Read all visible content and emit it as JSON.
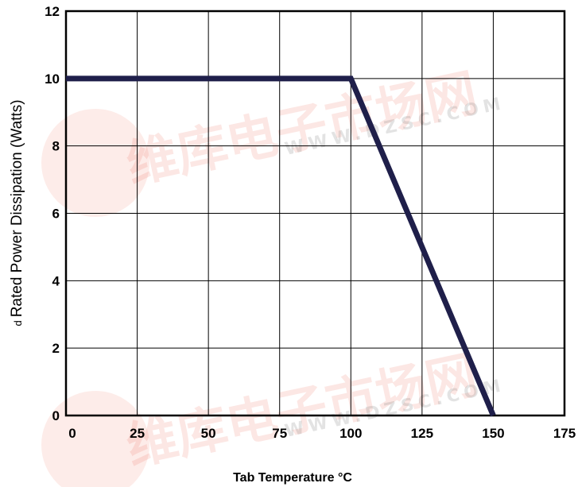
{
  "chart_data": {
    "type": "line",
    "title": "",
    "xlabel": "Tab Temperature °C",
    "ylabel": "Rated Power Dissipation (Watts)",
    "ylabel_prefix": "d",
    "xlim": [
      0,
      175
    ],
    "ylim": [
      0,
      12
    ],
    "x_ticks": [
      0,
      25,
      50,
      75,
      100,
      125,
      150,
      175
    ],
    "y_ticks": [
      0,
      2,
      4,
      6,
      8,
      10,
      12
    ],
    "grid": true,
    "legend": "none",
    "series": [
      {
        "x": [
          0,
          100,
          150
        ],
        "y": [
          10,
          10,
          0
        ]
      }
    ],
    "line_color": "#1f1f4a"
  },
  "watermark": {
    "chinese": "维库电子市场网",
    "url": "WWW.DZSC.COM"
  }
}
